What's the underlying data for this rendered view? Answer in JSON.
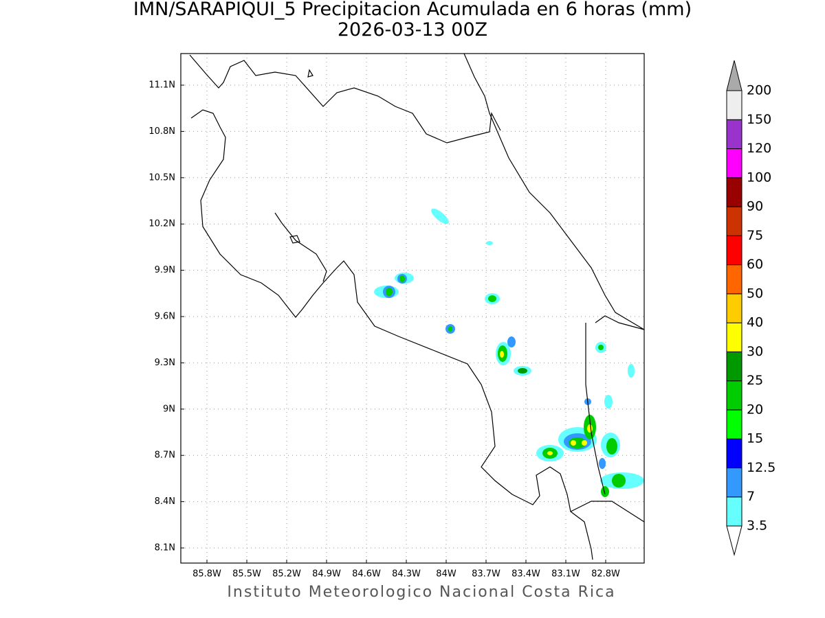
{
  "title": "IMN/SARAPIQUI_5 Precipitacion Acumulada en 6 horas (mm)",
  "subtitle": "2026-03-13 00Z",
  "lat_labels": [
    "11.1N",
    "10.8N",
    "10.5N",
    "10.2N",
    "9.9N",
    "9.6N",
    "9.3N",
    "9N",
    "8.7N",
    "8.4N",
    "8.1N"
  ],
  "lon_labels": [
    "85.8W",
    "85.5W",
    "85.2W",
    "84.9W",
    "84.6W",
    "84.3W",
    "84W",
    "83.7W",
    "83.4W",
    "83.1W",
    "82.8W"
  ],
  "colorbar": {
    "levels": [
      3.5,
      7,
      12.5,
      15,
      20,
      25,
      30,
      40,
      50,
      60,
      75,
      90,
      100,
      120,
      150,
      200
    ],
    "colors": [
      "#66ffff",
      "#3399ff",
      "#0000ff",
      "#00ff00",
      "#00cc00",
      "#009900",
      "#ffff00",
      "#ffcc00",
      "#ff6600",
      "#ff0000",
      "#cc3300",
      "#990000",
      "#ff00ff",
      "#9933cc",
      "#eeeeee"
    ],
    "under_color": "#ffffff",
    "over_color": "#aaaaaa"
  },
  "footer": "Instituto Meteorologico Nacional Costa Rica"
}
